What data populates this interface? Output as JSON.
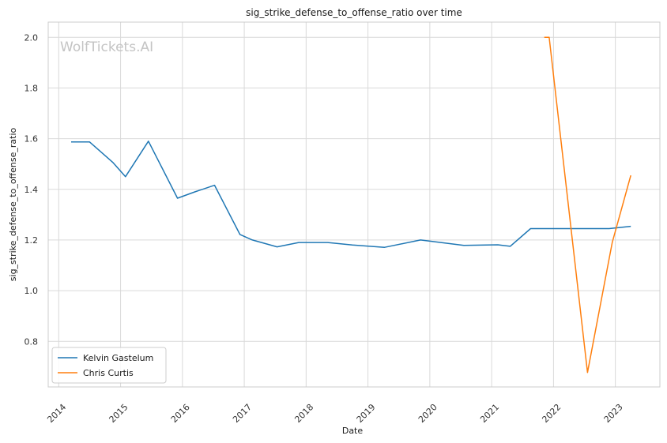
{
  "chart_data": {
    "type": "line",
    "title": "sig_strike_defense_to_offense_ratio over time",
    "xlabel": "Date",
    "ylabel": "sig_strike_defense_to_offense_ratio",
    "watermark": "WolfTickets.AI",
    "x_ticks": [
      "2014",
      "2015",
      "2016",
      "2017",
      "2018",
      "2019",
      "2020",
      "2021",
      "2022",
      "2023"
    ],
    "y_ticks": [
      "0.8",
      "1.0",
      "1.2",
      "1.4",
      "1.6",
      "1.8",
      "2.0"
    ],
    "xlim": [
      2013.83,
      2023.72
    ],
    "ylim": [
      0.62,
      2.06
    ],
    "grid": true,
    "legend_position": "lower-left",
    "series": [
      {
        "name": "Kelvin Gastelum",
        "color": "#1f77b4",
        "points": [
          [
            2014.2,
            1.587
          ],
          [
            2014.5,
            1.587
          ],
          [
            2014.88,
            1.505
          ],
          [
            2015.08,
            1.45
          ],
          [
            2015.45,
            1.59
          ],
          [
            2015.92,
            1.365
          ],
          [
            2016.2,
            1.39
          ],
          [
            2016.52,
            1.416
          ],
          [
            2016.93,
            1.222
          ],
          [
            2017.13,
            1.2
          ],
          [
            2017.53,
            1.173
          ],
          [
            2017.88,
            1.19
          ],
          [
            2018.35,
            1.19
          ],
          [
            2018.75,
            1.18
          ],
          [
            2019.27,
            1.171
          ],
          [
            2019.85,
            1.2
          ],
          [
            2020.55,
            1.179
          ],
          [
            2021.1,
            1.181
          ],
          [
            2021.3,
            1.175
          ],
          [
            2021.63,
            1.245
          ],
          [
            2022.35,
            1.245
          ],
          [
            2022.9,
            1.245
          ],
          [
            2023.25,
            1.254
          ]
        ]
      },
      {
        "name": "Chris Curtis",
        "color": "#ff7f0e",
        "points": [
          [
            2021.85,
            2.0
          ],
          [
            2021.93,
            2.0
          ],
          [
            2022.55,
            0.677
          ],
          [
            2022.95,
            1.19
          ],
          [
            2023.25,
            1.455
          ]
        ]
      }
    ]
  }
}
